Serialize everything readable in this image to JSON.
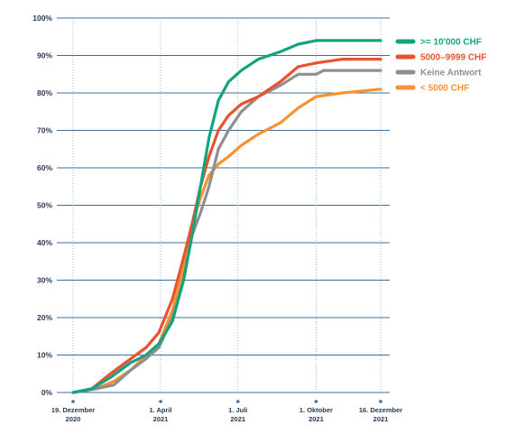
{
  "chart_data": {
    "type": "line",
    "ylim": [
      0,
      100
    ],
    "y_ticks": [
      "0%",
      "10%",
      "20%",
      "30%",
      "40%",
      "50%",
      "60%",
      "70%",
      "80%",
      "90%",
      "100%"
    ],
    "x_ticks": [
      {
        "date": "2020-12-19",
        "line1": "19. Dezember",
        "line2": "2020"
      },
      {
        "date": "2021-04-01",
        "line1": "1. April",
        "line2": "2021"
      },
      {
        "date": "2021-07-01",
        "line1": "1. Juli",
        "line2": "2021"
      },
      {
        "date": "2021-10-01",
        "line1": "1. Oktober",
        "line2": "2021"
      },
      {
        "date": "2021-12-16",
        "line1": "16. Dezember",
        "line2": "2021"
      }
    ],
    "grid": {
      "horizontal": true,
      "vertical_dotted": true
    },
    "legend_position": "right",
    "series": [
      {
        "name": ">= 10'000 CHF",
        "color": "#14a37f",
        "points": [
          [
            "2020-12-19",
            0
          ],
          [
            "2021-01-10",
            1
          ],
          [
            "2021-02-01",
            4
          ],
          [
            "2021-02-25",
            8
          ],
          [
            "2021-03-15",
            10
          ],
          [
            "2021-03-30",
            13
          ],
          [
            "2021-04-15",
            19
          ],
          [
            "2021-04-28",
            30
          ],
          [
            "2021-05-08",
            42
          ],
          [
            "2021-05-18",
            55
          ],
          [
            "2021-05-28",
            68
          ],
          [
            "2021-06-08",
            78
          ],
          [
            "2021-06-20",
            83
          ],
          [
            "2021-07-05",
            86
          ],
          [
            "2021-07-25",
            89
          ],
          [
            "2021-08-20",
            91
          ],
          [
            "2021-09-10",
            93
          ],
          [
            "2021-10-01",
            94
          ],
          [
            "2021-12-16",
            94
          ]
        ]
      },
      {
        "name": "5000–9999 CHF",
        "color": "#e8522e",
        "points": [
          [
            "2020-12-19",
            0
          ],
          [
            "2021-01-10",
            1
          ],
          [
            "2021-02-01",
            5
          ],
          [
            "2021-02-25",
            9
          ],
          [
            "2021-03-15",
            12
          ],
          [
            "2021-03-30",
            16
          ],
          [
            "2021-04-15",
            25
          ],
          [
            "2021-04-28",
            36
          ],
          [
            "2021-05-08",
            45
          ],
          [
            "2021-05-18",
            55
          ],
          [
            "2021-05-28",
            63
          ],
          [
            "2021-06-08",
            70
          ],
          [
            "2021-06-20",
            74
          ],
          [
            "2021-07-05",
            77
          ],
          [
            "2021-07-25",
            79
          ],
          [
            "2021-08-20",
            83
          ],
          [
            "2021-09-10",
            87
          ],
          [
            "2021-10-01",
            88
          ],
          [
            "2021-11-01",
            89
          ],
          [
            "2021-12-16",
            89
          ]
        ]
      },
      {
        "name": "Keine Antwort",
        "color": "#8f8f8f",
        "points": [
          [
            "2020-12-19",
            0
          ],
          [
            "2021-01-15",
            1
          ],
          [
            "2021-02-05",
            2
          ],
          [
            "2021-02-25",
            6
          ],
          [
            "2021-03-15",
            9
          ],
          [
            "2021-03-30",
            12
          ],
          [
            "2021-04-15",
            20
          ],
          [
            "2021-04-28",
            30
          ],
          [
            "2021-05-08",
            42
          ],
          [
            "2021-05-18",
            48
          ],
          [
            "2021-05-28",
            55
          ],
          [
            "2021-06-08",
            65
          ],
          [
            "2021-06-20",
            70
          ],
          [
            "2021-07-05",
            75
          ],
          [
            "2021-07-25",
            79
          ],
          [
            "2021-08-20",
            82
          ],
          [
            "2021-09-10",
            85
          ],
          [
            "2021-10-01",
            85
          ],
          [
            "2021-10-10",
            86
          ],
          [
            "2021-12-16",
            86
          ]
        ]
      },
      {
        "name": "< 5000 CHF",
        "color": "#f79232",
        "points": [
          [
            "2020-12-19",
            0
          ],
          [
            "2021-01-15",
            1
          ],
          [
            "2021-02-05",
            3
          ],
          [
            "2021-02-25",
            6
          ],
          [
            "2021-03-15",
            10
          ],
          [
            "2021-03-30",
            13
          ],
          [
            "2021-04-15",
            22
          ],
          [
            "2021-04-28",
            33
          ],
          [
            "2021-05-08",
            45
          ],
          [
            "2021-05-18",
            52
          ],
          [
            "2021-05-28",
            58
          ],
          [
            "2021-06-08",
            61
          ],
          [
            "2021-06-20",
            63
          ],
          [
            "2021-07-05",
            66
          ],
          [
            "2021-07-25",
            69
          ],
          [
            "2021-08-20",
            72
          ],
          [
            "2021-09-10",
            76
          ],
          [
            "2021-10-01",
            79
          ],
          [
            "2021-11-01",
            80
          ],
          [
            "2021-12-16",
            81
          ]
        ]
      }
    ]
  }
}
